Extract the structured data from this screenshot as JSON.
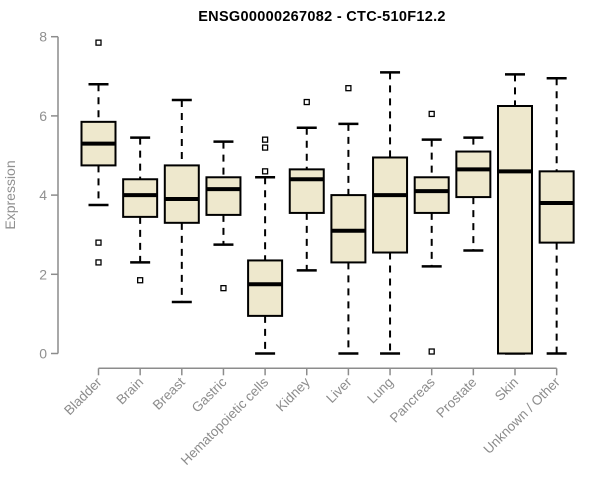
{
  "title": "ENSG00000267082 - CTC-510F12.2",
  "colors": {
    "box_fill": "#EEE8CD",
    "box_stroke": "#000000",
    "median_color": "#000000",
    "axis_color": "#8C8C8C",
    "label_color": "#909090",
    "title_color": "#000000",
    "background": "#FFFFFF",
    "outlier_fill": "#FFFFFF"
  },
  "chart_data": {
    "type": "boxplot",
    "title": "ENSG00000267082 - CTC-510F12.2",
    "xlabel": "",
    "ylabel": "Expression",
    "ylim": [
      0,
      8
    ],
    "yticks": [
      0,
      2,
      4,
      6,
      8
    ],
    "grid": false,
    "legend": false,
    "categories": [
      "Bladder",
      "Brain",
      "Breast",
      "Gastric",
      "Hematopoietic cells",
      "Kidney",
      "Liver",
      "Lung",
      "Pancreas",
      "Prostate",
      "Skin",
      "Unknown / Other"
    ],
    "series": [
      {
        "category": "Bladder",
        "whisker_low": 3.75,
        "q1": 4.75,
        "median": 5.3,
        "q3": 5.85,
        "whisker_high": 6.8,
        "outliers": [
          7.85,
          2.8,
          2.3
        ]
      },
      {
        "category": "Brain",
        "whisker_low": 2.3,
        "q1": 3.45,
        "median": 4.0,
        "q3": 4.4,
        "whisker_high": 5.45,
        "outliers": [
          1.85
        ]
      },
      {
        "category": "Breast",
        "whisker_low": 1.3,
        "q1": 3.3,
        "median": 3.9,
        "q3": 4.75,
        "whisker_high": 6.4,
        "outliers": []
      },
      {
        "category": "Gastric",
        "whisker_low": 2.75,
        "q1": 3.5,
        "median": 4.15,
        "q3": 4.45,
        "whisker_high": 5.35,
        "outliers": [
          1.65
        ]
      },
      {
        "category": "Hematopoietic cells",
        "whisker_low": 0.0,
        "q1": 0.95,
        "median": 1.75,
        "q3": 2.35,
        "whisker_high": 4.45,
        "outliers": [
          5.4,
          5.2,
          4.6
        ]
      },
      {
        "category": "Kidney",
        "whisker_low": 2.1,
        "q1": 3.55,
        "median": 4.4,
        "q3": 4.65,
        "whisker_high": 5.7,
        "outliers": [
          6.35
        ]
      },
      {
        "category": "Liver",
        "whisker_low": 0.0,
        "q1": 2.3,
        "median": 3.1,
        "q3": 4.0,
        "whisker_high": 5.8,
        "outliers": [
          6.7
        ]
      },
      {
        "category": "Lung",
        "whisker_low": 0.0,
        "q1": 2.55,
        "median": 4.0,
        "q3": 4.95,
        "whisker_high": 7.1,
        "outliers": []
      },
      {
        "category": "Pancreas",
        "whisker_low": 2.2,
        "q1": 3.55,
        "median": 4.1,
        "q3": 4.45,
        "whisker_high": 5.4,
        "outliers": [
          6.05,
          0.05
        ]
      },
      {
        "category": "Prostate",
        "whisker_low": 2.6,
        "q1": 3.95,
        "median": 4.65,
        "q3": 5.1,
        "whisker_high": 5.45,
        "outliers": []
      },
      {
        "category": "Skin",
        "whisker_low": 0.0,
        "q1": 0.0,
        "median": 4.6,
        "q3": 6.25,
        "whisker_high": 7.05,
        "outliers": []
      },
      {
        "category": "Unknown / Other",
        "whisker_low": 0.0,
        "q1": 2.8,
        "median": 3.8,
        "q3": 4.6,
        "whisker_high": 6.95,
        "outliers": []
      }
    ]
  }
}
